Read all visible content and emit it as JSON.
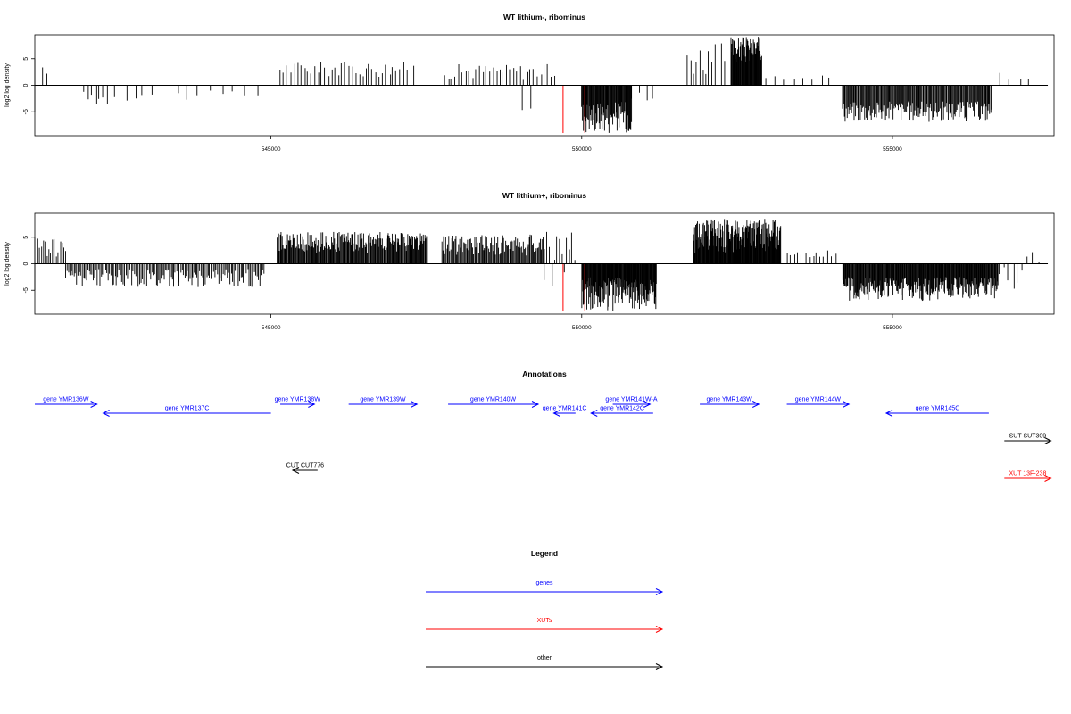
{
  "chart_data": [
    {
      "type": "bar",
      "title": "WT lithium-, ribominus",
      "ylabel": "log2 log density",
      "xlabel": "",
      "xlim": [
        541200,
        557600
      ],
      "ylim": [
        -9.5,
        9.5
      ],
      "yticks": [
        5,
        0,
        -5
      ],
      "xticks": [
        545000,
        550000,
        555000
      ],
      "xtick_labels": [
        "545000",
        "550000",
        "555000"
      ],
      "grid": false,
      "baseline": {
        "x": [
          541200,
          557500
        ],
        "y": 0
      },
      "highlight_color": "#ff0000",
      "highlights": [
        {
          "x": 549700,
          "y": -9
        },
        {
          "x": 550050,
          "y": -9
        }
      ],
      "regions": [
        {
          "from": 541300,
          "to": 541400,
          "step": 100,
          "min": 2,
          "max": 3.5
        },
        {
          "from": 542000,
          "to": 542400,
          "step": 60,
          "min": -4,
          "max": -1
        },
        {
          "from": 542500,
          "to": 543200,
          "step": 150,
          "min": -3,
          "max": -1
        },
        {
          "from": 543500,
          "to": 544800,
          "step": 180,
          "min": -3,
          "max": -1
        },
        {
          "from": 545150,
          "to": 547300,
          "step": 55,
          "min": 1.5,
          "max": 4.5
        },
        {
          "from": 547800,
          "to": 549600,
          "step": 55,
          "min": 1,
          "max": 4
        },
        {
          "from": 549000,
          "to": 549200,
          "step": 200,
          "min": -5,
          "max": -4
        },
        {
          "from": 550000,
          "to": 550800,
          "step": 10,
          "min": -9,
          "max": -3
        },
        {
          "from": 550800,
          "to": 551300,
          "step": 120,
          "min": -4,
          "max": -1
        },
        {
          "from": 551700,
          "to": 552300,
          "step": 50,
          "min": 1.5,
          "max": 8
        },
        {
          "from": 552400,
          "to": 552900,
          "step": 8,
          "min": 4,
          "max": 9
        },
        {
          "from": 553000,
          "to": 554100,
          "step": 140,
          "min": 1,
          "max": 2
        },
        {
          "from": 554200,
          "to": 556600,
          "step": 14,
          "min": -7,
          "max": -3
        },
        {
          "from": 556700,
          "to": 557300,
          "step": 180,
          "min": 1,
          "max": 2.5
        }
      ]
    },
    {
      "type": "bar",
      "title": "WT lithium+, ribominus",
      "ylabel": "log2 log density",
      "xlabel": "",
      "xlim": [
        541200,
        557600
      ],
      "ylim": [
        -9.5,
        9.5
      ],
      "yticks": [
        5,
        0,
        -5
      ],
      "xticks": [
        545000,
        550000,
        555000
      ],
      "xtick_labels": [
        "545000",
        "550000",
        "555000"
      ],
      "grid": false,
      "baseline": {
        "x": [
          541200,
          557500
        ],
        "y": 0
      },
      "highlight_color": "#ff0000",
      "highlights": [
        {
          "x": 549700,
          "y": -9
        },
        {
          "x": 550050,
          "y": -9
        }
      ],
      "regions": [
        {
          "from": 541250,
          "to": 541700,
          "step": 30,
          "min": 1,
          "max": 5
        },
        {
          "from": 541700,
          "to": 544900,
          "step": 22,
          "min": -4.5,
          "max": -1
        },
        {
          "from": 545100,
          "to": 547500,
          "step": 12,
          "min": 2,
          "max": 6
        },
        {
          "from": 547750,
          "to": 549400,
          "step": 16,
          "min": 1.5,
          "max": 5.5
        },
        {
          "from": 549400,
          "to": 549900,
          "step": 40,
          "min": -5,
          "max": 6
        },
        {
          "from": 550000,
          "to": 551200,
          "step": 8,
          "min": -9,
          "max": -2.5
        },
        {
          "from": 551800,
          "to": 553200,
          "step": 8,
          "min": 2,
          "max": 8.5
        },
        {
          "from": 553300,
          "to": 554100,
          "step": 60,
          "min": 1,
          "max": 2.5
        },
        {
          "from": 554200,
          "to": 556700,
          "step": 10,
          "min": -7,
          "max": -2.5
        },
        {
          "from": 556700,
          "to": 557400,
          "step": 80,
          "min": -5,
          "max": 2.5
        }
      ]
    }
  ],
  "annotations": {
    "title": "Annotations",
    "genes_color": "#0000ff",
    "xuts_color": "#ff0000",
    "other_color": "#000000",
    "features": [
      {
        "label": "gene YMR136W",
        "class": "gene",
        "strand": "+",
        "start": 541200,
        "end": 542200,
        "row": 0
      },
      {
        "label": "gene YMR137C",
        "class": "gene",
        "strand": "-",
        "start": 542300,
        "end": 545000,
        "row": 1
      },
      {
        "label": "gene YMR138W",
        "class": "gene",
        "strand": "+",
        "start": 545150,
        "end": 545700,
        "row": 0
      },
      {
        "label": "gene YMR139W",
        "class": "gene",
        "strand": "+",
        "start": 546250,
        "end": 547350,
        "row": 0
      },
      {
        "label": "gene YMR140W",
        "class": "gene",
        "strand": "+",
        "start": 547850,
        "end": 549300,
        "row": 0
      },
      {
        "label": "gene YMR141C",
        "class": "gene",
        "strand": "-",
        "start": 549550,
        "end": 549900,
        "row": 1
      },
      {
        "label": "gene YMR141W-A",
        "class": "gene",
        "strand": "+",
        "start": 550500,
        "end": 551100,
        "row": 0
      },
      {
        "label": "gene YMR142C",
        "class": "gene",
        "strand": "-",
        "start": 550150,
        "end": 551150,
        "row": 1
      },
      {
        "label": "gene YMR143W",
        "class": "gene",
        "strand": "+",
        "start": 551900,
        "end": 552850,
        "row": 0
      },
      {
        "label": "gene YMR144W",
        "class": "gene",
        "strand": "+",
        "start": 553300,
        "end": 554300,
        "row": 0
      },
      {
        "label": "gene YMR145C",
        "class": "gene",
        "strand": "-",
        "start": 554900,
        "end": 556550,
        "row": 1
      },
      {
        "label": "SUT SUT309",
        "class": "other",
        "strand": "+",
        "start": 556800,
        "end": 557550,
        "row": 2
      },
      {
        "label": "CUT CUT776",
        "class": "other",
        "strand": "-",
        "start": 545350,
        "end": 545750,
        "row": 3
      },
      {
        "label": "XUT 13F-238",
        "class": "xut",
        "strand": "+",
        "start": 556800,
        "end": 557550,
        "row": 4
      }
    ]
  },
  "legend": {
    "title": "Legend",
    "entries": [
      {
        "label": "genes",
        "color": "#0000ff"
      },
      {
        "label": "XUTs",
        "color": "#ff0000"
      },
      {
        "label": "other",
        "color": "#000000"
      }
    ]
  }
}
